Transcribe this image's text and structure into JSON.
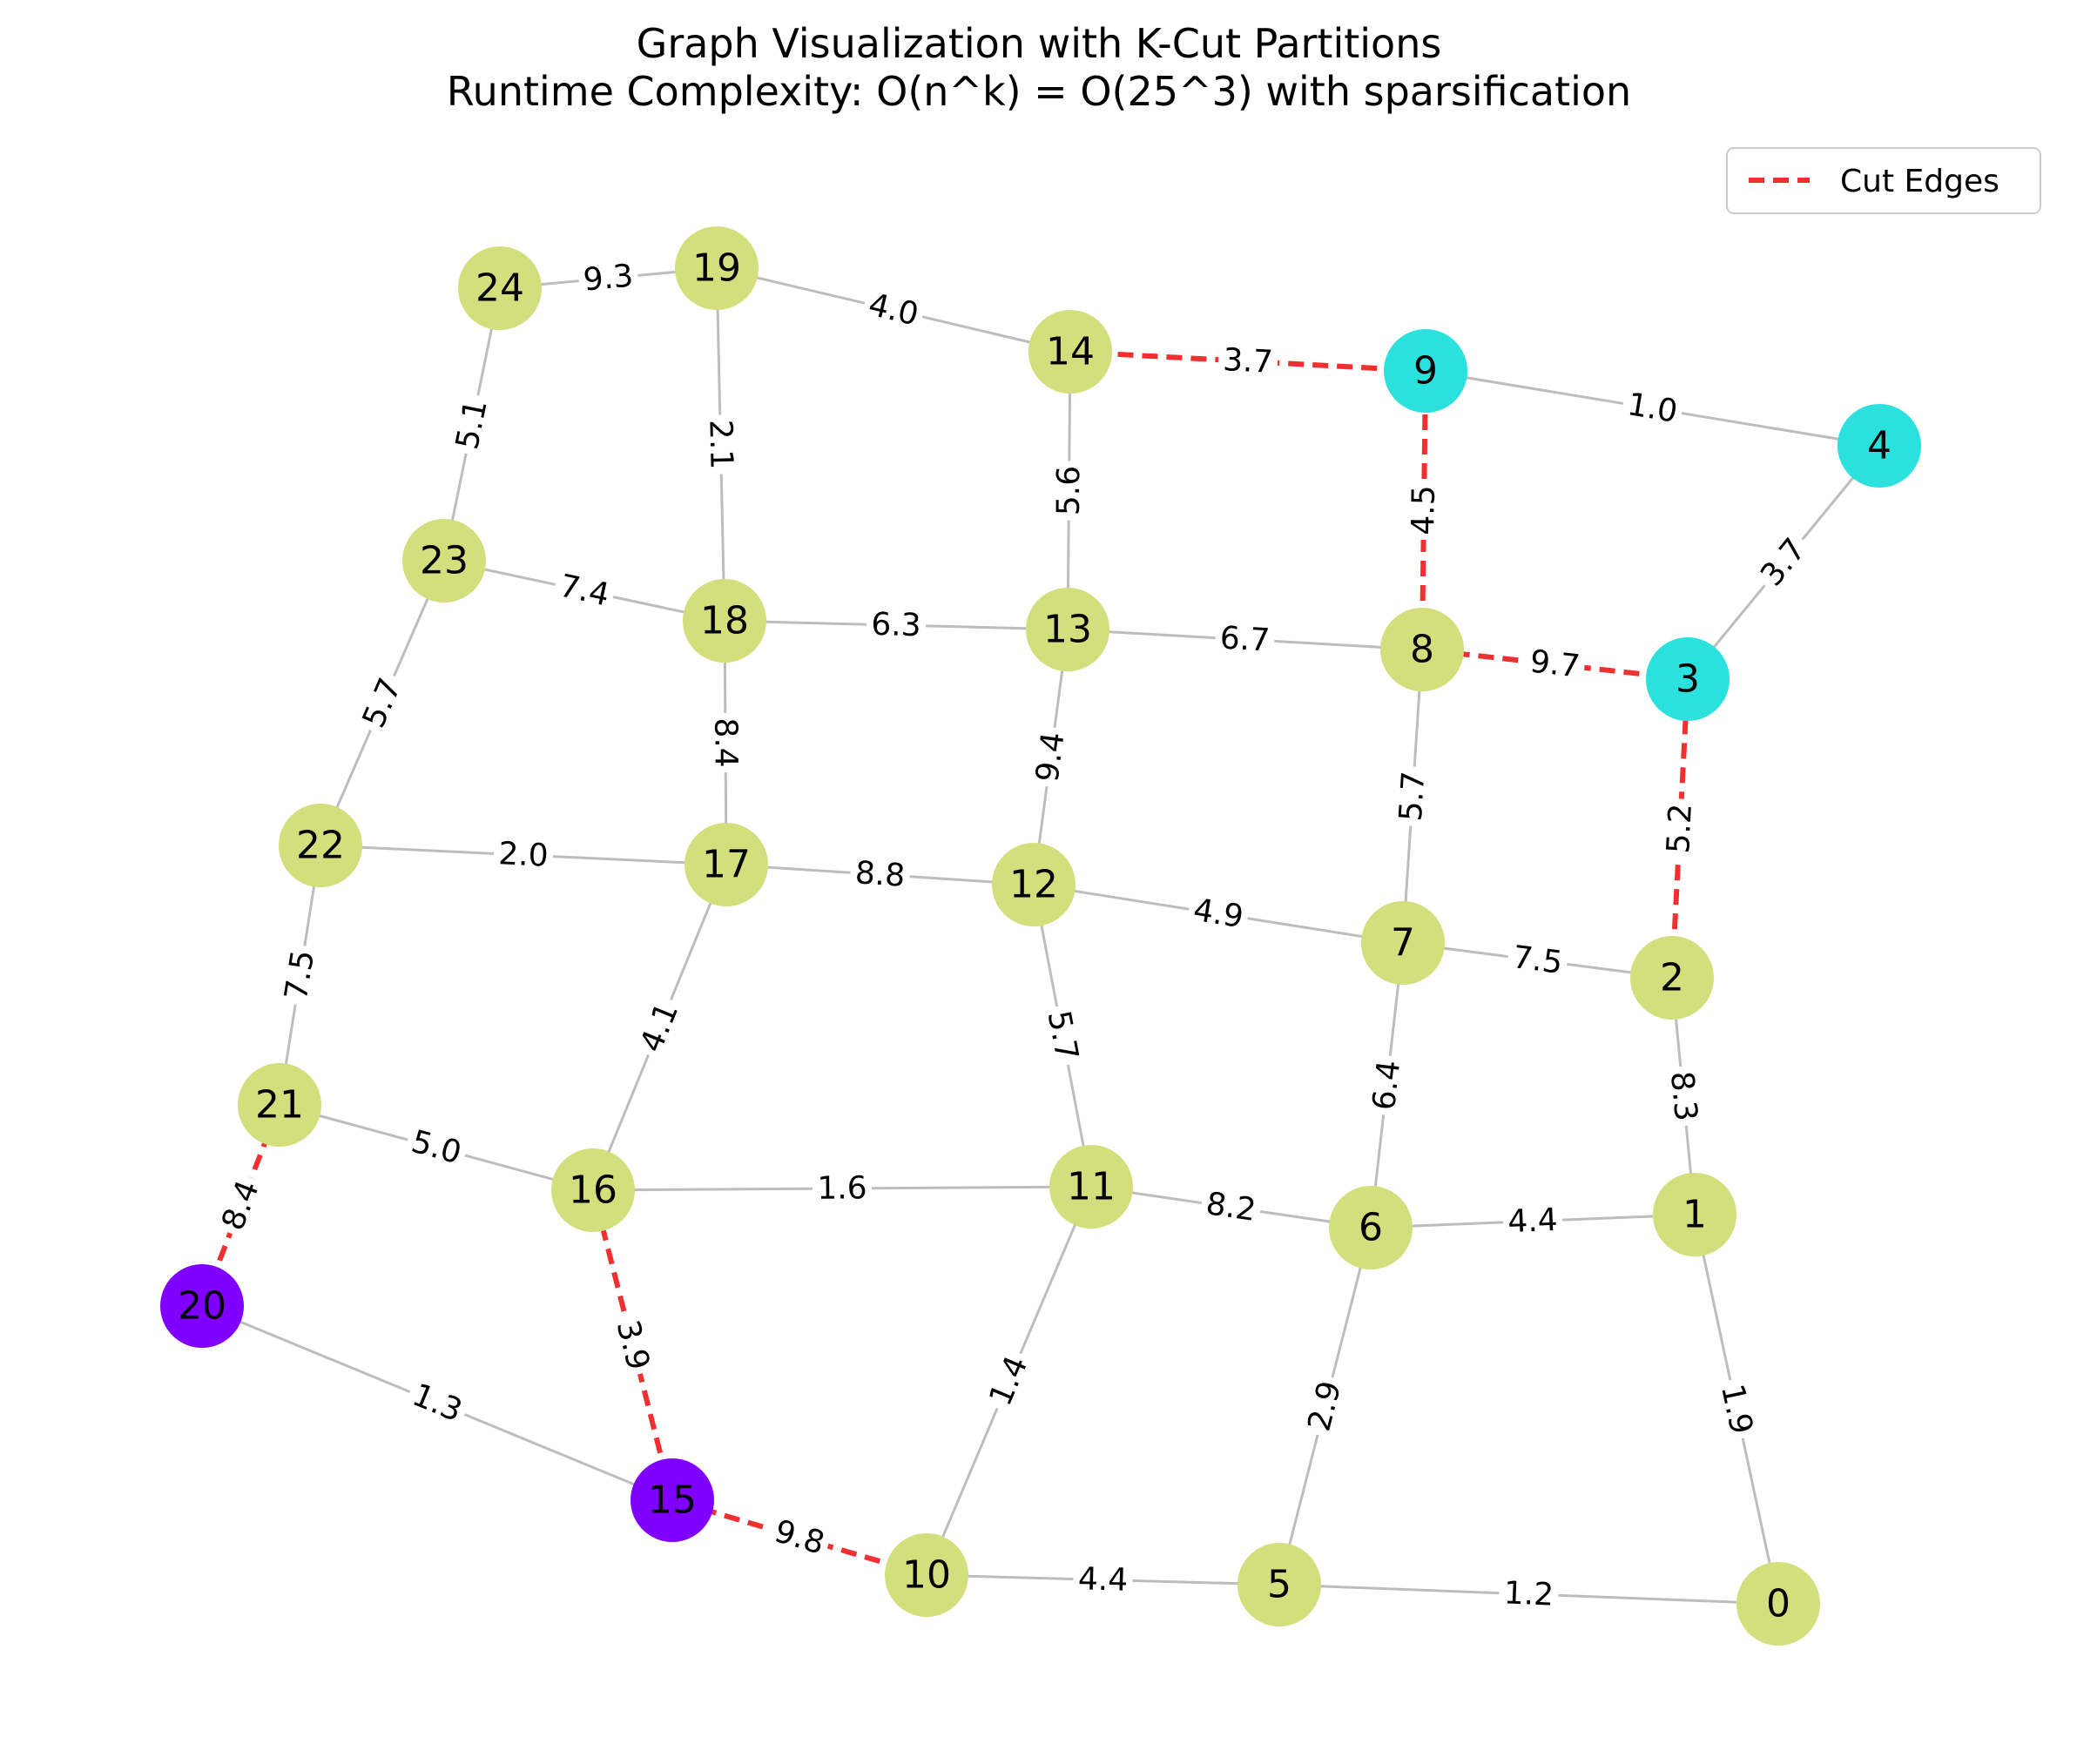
{
  "title": {
    "line1": "Graph Visualization with K-Cut Partitions",
    "line2": "Runtime Complexity: O(n^k) = O(25^3) with sparsification"
  },
  "legend": {
    "cut_label": "Cut Edges",
    "position": "top-right"
  },
  "colors": {
    "partition_a": "#d3df7d",
    "partition_b": "#2be1dd",
    "partition_c": "#7f00ff",
    "normal_edge": "#bdbdbd",
    "cut_edge": "#f03030"
  },
  "graph": {
    "nodes": [
      {
        "id": "0",
        "partition": "a"
      },
      {
        "id": "1",
        "partition": "a"
      },
      {
        "id": "2",
        "partition": "a"
      },
      {
        "id": "3",
        "partition": "b"
      },
      {
        "id": "4",
        "partition": "b"
      },
      {
        "id": "5",
        "partition": "a"
      },
      {
        "id": "6",
        "partition": "a"
      },
      {
        "id": "7",
        "partition": "a"
      },
      {
        "id": "8",
        "partition": "a"
      },
      {
        "id": "9",
        "partition": "b"
      },
      {
        "id": "10",
        "partition": "a"
      },
      {
        "id": "11",
        "partition": "a"
      },
      {
        "id": "12",
        "partition": "a"
      },
      {
        "id": "13",
        "partition": "a"
      },
      {
        "id": "14",
        "partition": "a"
      },
      {
        "id": "15",
        "partition": "c"
      },
      {
        "id": "16",
        "partition": "a"
      },
      {
        "id": "17",
        "partition": "a"
      },
      {
        "id": "18",
        "partition": "a"
      },
      {
        "id": "19",
        "partition": "a"
      },
      {
        "id": "20",
        "partition": "c"
      },
      {
        "id": "21",
        "partition": "a"
      },
      {
        "id": "22",
        "partition": "a"
      },
      {
        "id": "23",
        "partition": "a"
      },
      {
        "id": "24",
        "partition": "a"
      }
    ],
    "edges": [
      {
        "source": "0",
        "target": "1",
        "weight": "1.9",
        "cut": false
      },
      {
        "source": "0",
        "target": "5",
        "weight": "1.2",
        "cut": false
      },
      {
        "source": "1",
        "target": "2",
        "weight": "8.3",
        "cut": false
      },
      {
        "source": "1",
        "target": "6",
        "weight": "4.4",
        "cut": false
      },
      {
        "source": "2",
        "target": "3",
        "weight": "5.2",
        "cut": true
      },
      {
        "source": "2",
        "target": "7",
        "weight": "7.5",
        "cut": false
      },
      {
        "source": "3",
        "target": "4",
        "weight": "3.7",
        "cut": false
      },
      {
        "source": "3",
        "target": "8",
        "weight": "9.7",
        "cut": true
      },
      {
        "source": "4",
        "target": "9",
        "weight": "1.0",
        "cut": false
      },
      {
        "source": "5",
        "target": "6",
        "weight": "2.9",
        "cut": false
      },
      {
        "source": "5",
        "target": "10",
        "weight": "4.4",
        "cut": false
      },
      {
        "source": "6",
        "target": "7",
        "weight": "6.4",
        "cut": false
      },
      {
        "source": "6",
        "target": "11",
        "weight": "8.2",
        "cut": false
      },
      {
        "source": "7",
        "target": "8",
        "weight": "5.7",
        "cut": false
      },
      {
        "source": "7",
        "target": "12",
        "weight": "4.9",
        "cut": false
      },
      {
        "source": "8",
        "target": "9",
        "weight": "4.5",
        "cut": true
      },
      {
        "source": "8",
        "target": "13",
        "weight": "6.7",
        "cut": false
      },
      {
        "source": "9",
        "target": "14",
        "weight": "3.7",
        "cut": true
      },
      {
        "source": "10",
        "target": "11",
        "weight": "1.4",
        "cut": false
      },
      {
        "source": "10",
        "target": "15",
        "weight": "9.8",
        "cut": true
      },
      {
        "source": "11",
        "target": "12",
        "weight": "5.7",
        "cut": false
      },
      {
        "source": "11",
        "target": "16",
        "weight": "1.6",
        "cut": false
      },
      {
        "source": "12",
        "target": "13",
        "weight": "9.4",
        "cut": false
      },
      {
        "source": "12",
        "target": "17",
        "weight": "8.8",
        "cut": false
      },
      {
        "source": "13",
        "target": "14",
        "weight": "5.6",
        "cut": false
      },
      {
        "source": "13",
        "target": "18",
        "weight": "6.3",
        "cut": false
      },
      {
        "source": "14",
        "target": "19",
        "weight": "4.0",
        "cut": false
      },
      {
        "source": "15",
        "target": "16",
        "weight": "3.9",
        "cut": true
      },
      {
        "source": "15",
        "target": "20",
        "weight": "1.3",
        "cut": false
      },
      {
        "source": "16",
        "target": "17",
        "weight": "4.1",
        "cut": false
      },
      {
        "source": "16",
        "target": "21",
        "weight": "5.0",
        "cut": false
      },
      {
        "source": "17",
        "target": "18",
        "weight": "8.4",
        "cut": false
      },
      {
        "source": "17",
        "target": "22",
        "weight": "2.0",
        "cut": false
      },
      {
        "source": "18",
        "target": "19",
        "weight": "2.1",
        "cut": false
      },
      {
        "source": "18",
        "target": "23",
        "weight": "7.4",
        "cut": false
      },
      {
        "source": "19",
        "target": "24",
        "weight": "9.3",
        "cut": false
      },
      {
        "source": "20",
        "target": "21",
        "weight": "8.4",
        "cut": true
      },
      {
        "source": "21",
        "target": "22",
        "weight": "7.5",
        "cut": false
      },
      {
        "source": "22",
        "target": "23",
        "weight": "5.7",
        "cut": false
      },
      {
        "source": "23",
        "target": "24",
        "weight": "5.1",
        "cut": false
      }
    ]
  }
}
